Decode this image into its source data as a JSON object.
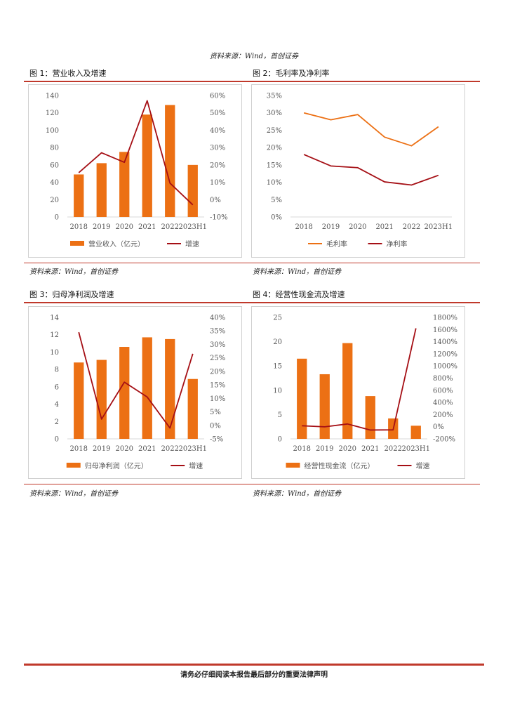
{
  "header": {
    "source": "资料来源：Wind，首创证券"
  },
  "figures": [
    {
      "title": "图 1：营业收入及增速",
      "source": "资料来源：Wind，首创证券"
    },
    {
      "title": "图 2：毛利率及净利率",
      "source": "资料来源：Wind，首创证券"
    },
    {
      "title": "图 3：归母净利润及增速",
      "source": "资料来源：Wind，首创证券"
    },
    {
      "title": "图 4：经营性现金流及增速",
      "source": "资料来源：Wind，首创证券"
    }
  ],
  "footer": {
    "text": "请务必仔细阅读本报告最后部分的重要法律声明"
  },
  "colors": {
    "bar": "#ec7014",
    "line_dark": "#a50f15",
    "line_orange": "#ec7014",
    "accent": "#c0392b"
  },
  "chart_data": [
    {
      "type": "bar",
      "categories": [
        "2018",
        "2019",
        "2020",
        "2021",
        "2022",
        "2023H1"
      ],
      "series": [
        {
          "name": "营业收入（亿元）",
          "type": "bar",
          "axis": "left",
          "values": [
            49,
            62,
            75,
            118,
            129,
            60
          ]
        },
        {
          "name": "增速",
          "type": "line",
          "axis": "right",
          "values": [
            15.5,
            27,
            21.5,
            57,
            9.5,
            -3
          ]
        }
      ],
      "yleft": {
        "min": 0,
        "max": 140,
        "step": 20,
        "ticks": [
          "0",
          "20",
          "40",
          "60",
          "80",
          "100",
          "120",
          "140"
        ]
      },
      "yright": {
        "min": -10,
        "max": 60,
        "step": 10,
        "ticks": [
          "-10%",
          "0%",
          "10%",
          "20%",
          "30%",
          "40%",
          "50%",
          "60%"
        ]
      },
      "legend": "bottom"
    },
    {
      "type": "line",
      "categories": [
        "2018",
        "2019",
        "2020",
        "2021",
        "2022",
        "2023H1"
      ],
      "series": [
        {
          "name": "毛利率",
          "values": [
            30,
            28,
            29.5,
            23,
            20.5,
            26
          ]
        },
        {
          "name": "净利率",
          "values": [
            18,
            14.7,
            14.2,
            10.1,
            9.2,
            12
          ]
        }
      ],
      "yleft": {
        "min": 0,
        "max": 35,
        "step": 5,
        "ticks": [
          "0%",
          "5%",
          "10%",
          "15%",
          "20%",
          "25%",
          "30%",
          "35%"
        ]
      },
      "legend": "bottom"
    },
    {
      "type": "bar",
      "categories": [
        "2018",
        "2019",
        "2020",
        "2021",
        "2022",
        "2023H1"
      ],
      "series": [
        {
          "name": "归母净利润（亿元）",
          "type": "bar",
          "axis": "left",
          "values": [
            8.8,
            9.1,
            10.6,
            11.7,
            11.5,
            6.9
          ]
        },
        {
          "name": "增速",
          "type": "line",
          "axis": "right",
          "values": [
            34.5,
            2.3,
            16,
            10.5,
            -1,
            26.5
          ]
        }
      ],
      "yleft": {
        "min": 0,
        "max": 14,
        "step": 2,
        "ticks": [
          "0",
          "2",
          "4",
          "6",
          "8",
          "10",
          "12",
          "14"
        ]
      },
      "yright": {
        "min": -5,
        "max": 40,
        "step": 5,
        "ticks": [
          "-5%",
          "0%",
          "5%",
          "10%",
          "15%",
          "20%",
          "25%",
          "30%",
          "35%",
          "40%"
        ]
      },
      "legend": "bottom"
    },
    {
      "type": "bar",
      "categories": [
        "2018",
        "2019",
        "2020",
        "2021",
        "2022",
        "2023H1"
      ],
      "series": [
        {
          "name": "经营性现金流（亿元）",
          "type": "bar",
          "axis": "left",
          "values": [
            16.5,
            13.3,
            19.7,
            8.8,
            4.2,
            2.7
          ]
        },
        {
          "name": "增速",
          "type": "line",
          "axis": "right",
          "values": [
            15,
            -2,
            45,
            -55,
            -52,
            1620
          ]
        }
      ],
      "yleft": {
        "min": 0,
        "max": 25,
        "step": 5,
        "ticks": [
          "0",
          "5",
          "10",
          "15",
          "20",
          "25"
        ]
      },
      "yright": {
        "min": -200,
        "max": 1800,
        "step": 200,
        "ticks": [
          "-200%",
          "0%",
          "200%",
          "400%",
          "600%",
          "800%",
          "1000%",
          "1200%",
          "1400%",
          "1600%",
          "1800%"
        ]
      },
      "legend": "bottom"
    }
  ]
}
